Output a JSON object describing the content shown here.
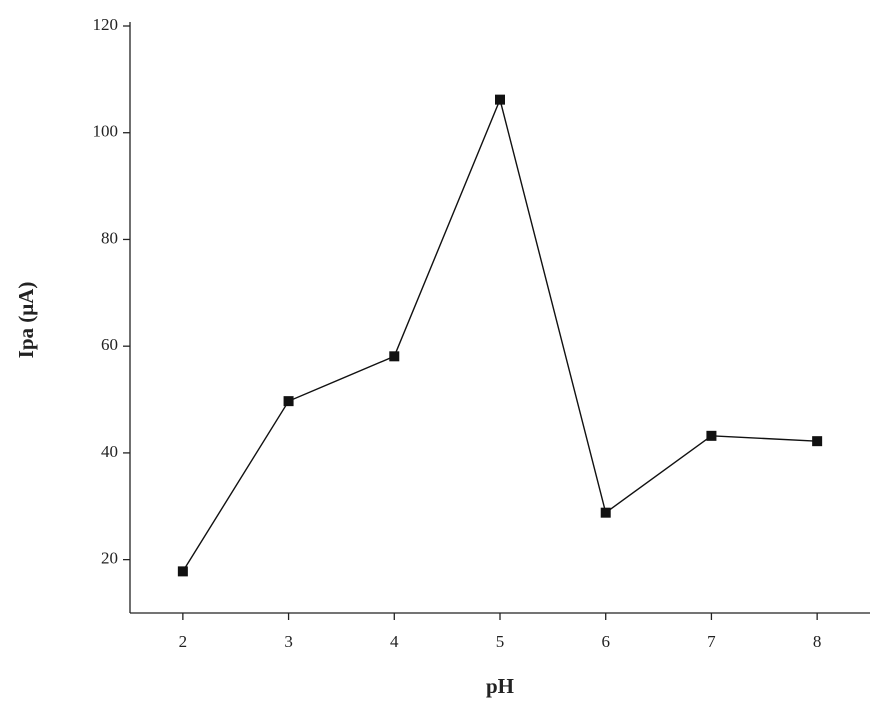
{
  "chart_data": {
    "type": "line",
    "x_label": "pH",
    "y_label": "Ipa (μA)",
    "x": [
      2,
      3,
      4,
      5,
      6,
      7,
      8
    ],
    "series": [
      {
        "color": "#111111",
        "values": [
          17.8,
          49.7,
          58.1,
          106.2,
          28.8,
          43.2,
          42.2
        ]
      }
    ],
    "xlim": [
      1.5,
      8.5
    ],
    "xticks": [
      2,
      3,
      4,
      5,
      6,
      7,
      8
    ],
    "ylim": [
      10,
      120
    ],
    "yticks": [
      20,
      40,
      60,
      80,
      100,
      120
    ],
    "grid": false
  }
}
